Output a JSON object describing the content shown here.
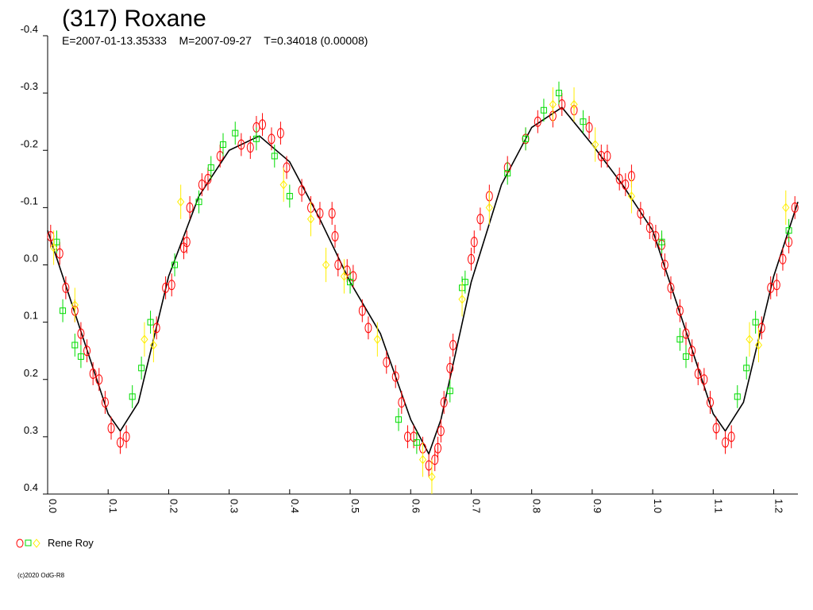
{
  "chart_data": {
    "type": "scatter",
    "title": "(317) Roxane",
    "subtitle": "E=2007-01-13.35333    M=2007-09-27    T=0.34018 (0.00008)",
    "legend": "Rene Roy",
    "footer": "(c)2020 OdG-R8",
    "xlim": [
      0,
      1.24
    ],
    "ylim": [
      -0.4,
      0.4
    ],
    "y_reversed": true,
    "xticks": [
      {
        "value": 0,
        "label": "0.0"
      },
      0.1,
      0.2,
      0.3,
      0.4,
      0.5,
      0.6,
      0.7,
      0.8,
      0.9,
      {
        "value": 1,
        "label": "1.0"
      },
      1.1,
      1.2
    ],
    "yticks": [
      -0.4,
      -0.3,
      -0.2,
      -0.1,
      {
        "value": 0,
        "label": "0.0"
      },
      0.1,
      0.2,
      0.3,
      0.4
    ],
    "curve": {
      "color": "#000000",
      "x": [
        0,
        0.05,
        0.1,
        0.12,
        0.15,
        0.2,
        0.25,
        0.3,
        0.35,
        0.4,
        0.45,
        0.5,
        0.55,
        0.6,
        0.63,
        0.65,
        0.7,
        0.75,
        0.8,
        0.85,
        0.9,
        0.95,
        1.0,
        1.05,
        1.1,
        1.12,
        1.15,
        1.2,
        1.24
      ],
      "values": [
        -0.06,
        0.1,
        0.26,
        0.29,
        0.24,
        0.02,
        -0.12,
        -0.2,
        -0.225,
        -0.18,
        -0.08,
        0.03,
        0.12,
        0.27,
        0.33,
        0.27,
        0.03,
        -0.14,
        -0.24,
        -0.275,
        -0.21,
        -0.14,
        -0.06,
        0.1,
        0.26,
        0.29,
        0.24,
        0.02,
        -0.11
      ]
    },
    "series": [
      {
        "color": "#ff0000",
        "marker": "circle",
        "error": 0.02,
        "x": [
          0.005,
          0.02,
          0.03,
          0.045,
          0.055,
          0.065,
          0.075,
          0.085,
          0.095,
          0.105,
          0.12,
          0.13,
          0.18,
          0.195,
          0.205,
          0.225,
          0.23,
          0.235,
          0.255,
          0.265,
          0.285,
          0.32,
          0.335,
          0.345,
          0.355,
          0.37,
          0.385,
          0.395,
          0.42,
          0.435,
          0.45,
          0.47,
          0.475,
          0.48,
          0.495,
          0.505,
          0.52,
          0.53,
          0.56,
          0.575,
          0.585,
          0.595,
          0.605,
          0.62,
          0.63,
          0.64,
          0.645,
          0.65,
          0.655,
          0.665,
          0.67,
          0.7,
          0.705,
          0.715,
          0.73,
          0.76,
          0.79,
          0.81,
          0.835,
          0.85,
          0.87,
          0.895,
          0.915,
          0.925,
          0.945,
          0.955,
          0.965,
          0.98,
          0.995,
          1.005,
          1.015,
          1.02,
          1.03,
          1.045,
          1.055,
          1.065,
          1.075,
          1.085,
          1.095,
          1.105,
          1.12,
          1.13,
          1.18,
          1.195,
          1.205,
          1.215,
          1.225,
          1.235
        ],
        "values": [
          -0.05,
          -0.02,
          0.04,
          0.08,
          0.12,
          0.15,
          0.19,
          0.2,
          0.24,
          0.285,
          0.31,
          0.3,
          0.11,
          0.04,
          0.035,
          -0.03,
          -0.04,
          -0.1,
          -0.14,
          -0.15,
          -0.19,
          -0.21,
          -0.205,
          -0.24,
          -0.245,
          -0.22,
          -0.23,
          -0.17,
          -0.13,
          -0.1,
          -0.09,
          -0.09,
          -0.05,
          0.0,
          0.01,
          0.02,
          0.08,
          0.11,
          0.17,
          0.195,
          0.24,
          0.3,
          0.3,
          0.32,
          0.35,
          0.34,
          0.32,
          0.29,
          0.24,
          0.18,
          0.14,
          -0.01,
          -0.04,
          -0.08,
          -0.12,
          -0.17,
          -0.22,
          -0.25,
          -0.26,
          -0.28,
          -0.27,
          -0.24,
          -0.19,
          -0.19,
          -0.15,
          -0.14,
          -0.155,
          -0.09,
          -0.065,
          -0.05,
          -0.035,
          0.0,
          0.04,
          0.08,
          0.12,
          0.15,
          0.19,
          0.2,
          0.24,
          0.285,
          0.31,
          0.3,
          0.11,
          0.04,
          0.035,
          -0.01,
          -0.04,
          -0.1
        ]
      },
      {
        "color": "#00dd00",
        "marker": "square",
        "error": 0.02,
        "x": [
          0.015,
          0.025,
          0.045,
          0.055,
          0.14,
          0.155,
          0.17,
          0.21,
          0.25,
          0.27,
          0.29,
          0.31,
          0.345,
          0.375,
          0.4,
          0.5,
          0.58,
          0.61,
          0.665,
          0.685,
          0.69,
          0.76,
          0.79,
          0.82,
          0.845,
          0.885,
          1.015,
          1.045,
          1.055,
          1.14,
          1.155,
          1.17,
          1.225
        ],
        "values": [
          -0.04,
          0.08,
          0.14,
          0.16,
          0.23,
          0.18,
          0.1,
          0.0,
          -0.11,
          -0.17,
          -0.21,
          -0.23,
          -0.22,
          -0.19,
          -0.12,
          0.03,
          0.27,
          0.31,
          0.22,
          0.04,
          0.03,
          -0.16,
          -0.22,
          -0.27,
          -0.3,
          -0.25,
          -0.04,
          0.13,
          0.16,
          0.23,
          0.18,
          0.1,
          -0.06
        ]
      },
      {
        "color": "#ffee00",
        "marker": "diamond",
        "error": 0.03,
        "x": [
          0.01,
          0.045,
          0.16,
          0.175,
          0.22,
          0.39,
          0.435,
          0.46,
          0.49,
          0.545,
          0.62,
          0.635,
          0.685,
          0.73,
          0.835,
          0.87,
          0.905,
          0.965,
          1.16,
          1.175,
          1.22
        ],
        "values": [
          -0.03,
          0.07,
          0.13,
          0.14,
          -0.11,
          -0.14,
          -0.08,
          0.0,
          0.02,
          0.13,
          0.34,
          0.37,
          0.06,
          -0.1,
          -0.28,
          -0.28,
          -0.21,
          -0.12,
          0.13,
          0.14,
          -0.1
        ]
      }
    ]
  }
}
